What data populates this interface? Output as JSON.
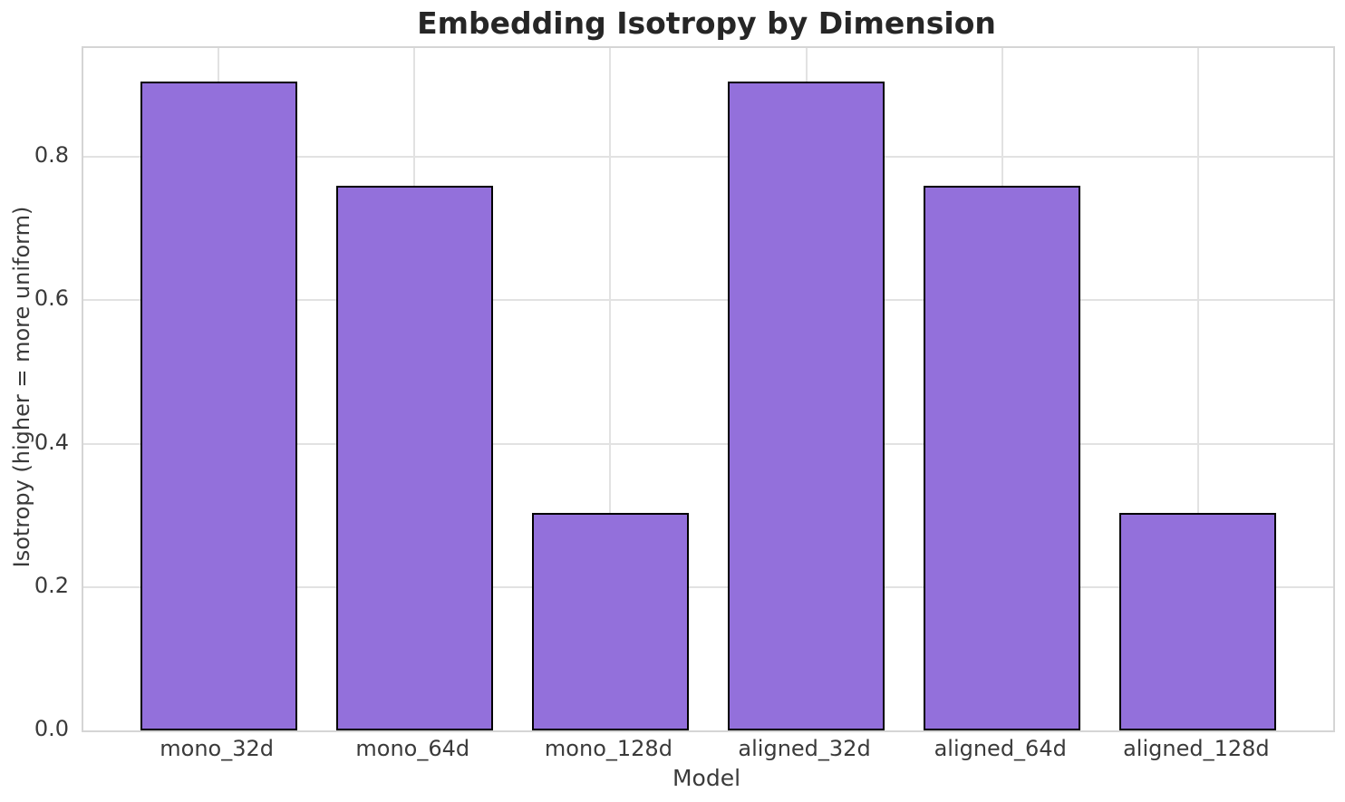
{
  "chart_data": {
    "type": "bar",
    "title": "Embedding Isotropy by Dimension",
    "xlabel": "Model",
    "ylabel": "Isotropy (higher = more uniform)",
    "categories": [
      "mono_32d",
      "mono_64d",
      "mono_128d",
      "aligned_32d",
      "aligned_64d",
      "aligned_128d"
    ],
    "values": [
      0.905,
      0.76,
      0.303,
      0.905,
      0.76,
      0.303
    ],
    "yticks": [
      0.0,
      0.2,
      0.4,
      0.6,
      0.8
    ],
    "ytick_labels": [
      "0.0",
      "0.2",
      "0.4",
      "0.6",
      "0.8"
    ],
    "ylim": [
      0,
      0.952
    ],
    "xlim": [
      -0.69,
      5.69
    ],
    "bar_width": 0.8,
    "grid": true,
    "legend": "none",
    "colors": {
      "bar_fill": "#9370DB",
      "bar_edge": "#000000",
      "grid": "#e2e2e2",
      "spine": "#d5d5d5",
      "title_text": "#262626",
      "tick_text": "#3a3a3a"
    }
  }
}
